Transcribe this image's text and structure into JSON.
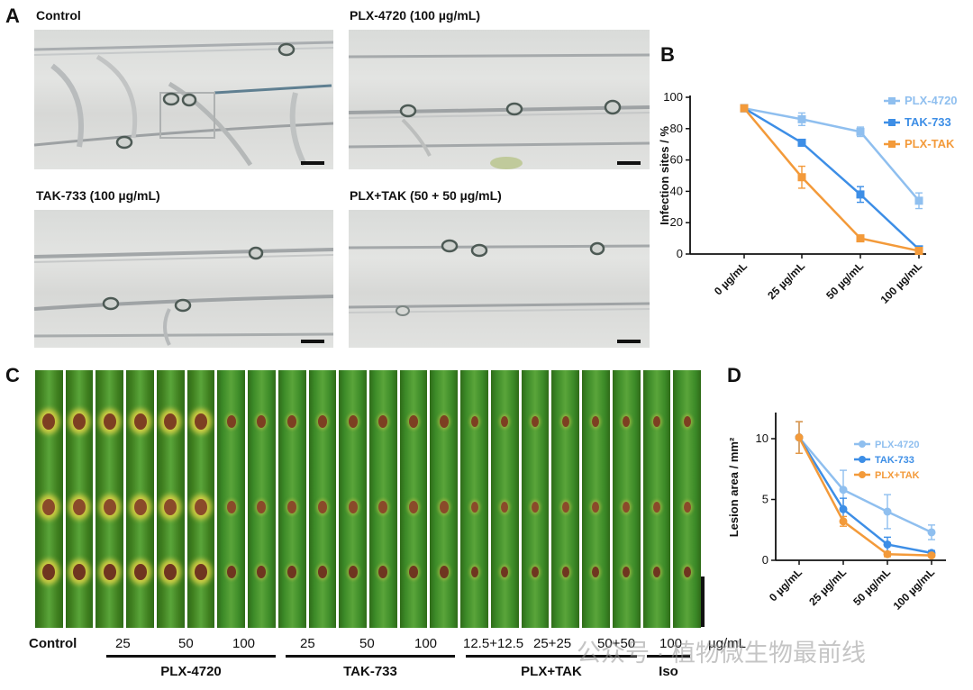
{
  "panel_letters": {
    "a": "A",
    "b": "B",
    "c": "C",
    "d": "D"
  },
  "panel_a": {
    "images": [
      {
        "title": "Control"
      },
      {
        "title": "PLX-4720 (100 µg/mL)"
      },
      {
        "title": "TAK-733 (100 µg/mL)"
      },
      {
        "title": "PLX+TAK (50 + 50 µg/mL)"
      }
    ]
  },
  "colors": {
    "plx": "#8fbfef",
    "tak": "#3d8ee6",
    "plxtak": "#f39a3a"
  },
  "chart_data": [
    {
      "panel": "B",
      "type": "line",
      "title": "",
      "ylabel": "Infection sites / %",
      "xlabel": "",
      "categories": [
        "0 µg/mL",
        "25 µg/mL",
        "50 µg/mL",
        "100 µg/mL"
      ],
      "ylim": [
        0,
        100
      ],
      "yticks": [
        "0",
        "20",
        "40",
        "60",
        "80",
        "100"
      ],
      "legend_position": "top-right",
      "marker": "square",
      "series": [
        {
          "name": "PLX-4720",
          "values": [
            93,
            86,
            78,
            34
          ],
          "errors": [
            2,
            4,
            3,
            5
          ]
        },
        {
          "name": "TAK-733",
          "values": [
            93,
            71,
            38,
            3
          ],
          "errors": [
            2,
            2,
            5,
            1
          ]
        },
        {
          "name": "PLX-TAK",
          "values": [
            93,
            49,
            10,
            2
          ],
          "errors": [
            2,
            7,
            1,
            1
          ]
        }
      ]
    },
    {
      "panel": "D",
      "type": "line",
      "title": "",
      "ylabel": "Lesion area / mm²",
      "xlabel": "",
      "categories": [
        "0 µg/mL",
        "25 µg/mL",
        "50 µg/mL",
        "100 µg/mL"
      ],
      "ylim": [
        0,
        12
      ],
      "yticks": [
        "0",
        "5",
        "10"
      ],
      "legend_position": "top-right",
      "marker": "circle",
      "series": [
        {
          "name": "PLX-4720",
          "values": [
            10.1,
            5.8,
            4.0,
            2.3
          ],
          "errors": [
            1.3,
            1.6,
            1.4,
            0.6
          ]
        },
        {
          "name": "TAK-733",
          "values": [
            10.1,
            4.2,
            1.3,
            0.6
          ],
          "errors": [
            1.3,
            0.9,
            0.6,
            0.2
          ]
        },
        {
          "name": "PLX+TAK",
          "values": [
            10.1,
            3.2,
            0.5,
            0.4
          ],
          "errors": [
            1.3,
            0.4,
            0.2,
            0.1
          ]
        }
      ]
    }
  ],
  "panel_c": {
    "row_label": "Control",
    "dose_labels": [
      "25",
      "50",
      "100",
      "25",
      "50",
      "100",
      "12.5+12.5",
      "25+25",
      "50+50",
      "100"
    ],
    "unit": "µg/mL",
    "groups": [
      "PLX-4720",
      "TAK-733",
      "PLX+TAK",
      "Iso"
    ]
  },
  "watermark": "公众号 · 植物微生物最前线"
}
